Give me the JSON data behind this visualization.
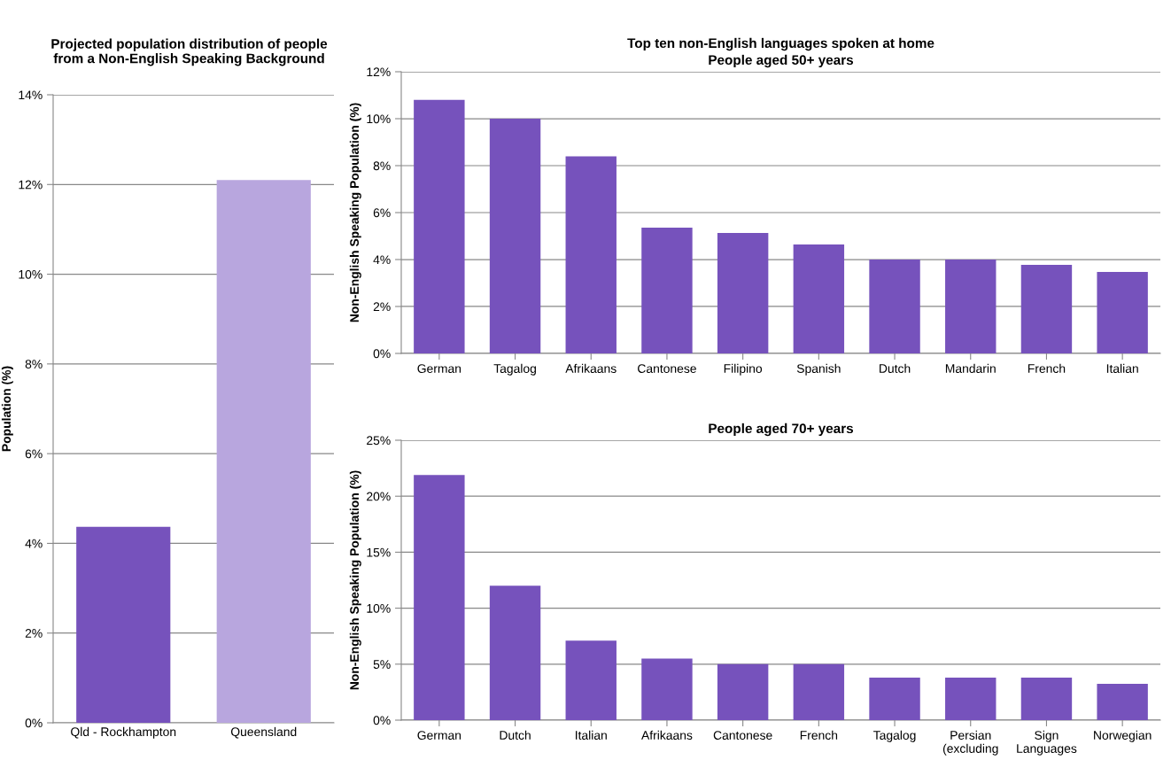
{
  "chart_data": [
    {
      "type": "bar",
      "title": "Projected population distribution of people\nfrom a Non-English Speaking Background",
      "ylabel": "Population (%)",
      "categories": [
        "Qld - Rockhampton",
        "Queensland"
      ],
      "values": [
        4.37,
        12.1
      ],
      "colors": [
        "#7652bc",
        "#b8a6de"
      ],
      "ylim": [
        0,
        14
      ],
      "yticks": [
        {
          "value": 0,
          "label": "0%"
        },
        {
          "value": 2,
          "label": "2%"
        },
        {
          "value": 4,
          "label": "4%"
        },
        {
          "value": 6,
          "label": "6%"
        },
        {
          "value": 8,
          "label": "8%"
        },
        {
          "value": 10,
          "label": "10%"
        },
        {
          "value": 12,
          "label": "12%"
        },
        {
          "value": 14,
          "label": "14%"
        }
      ],
      "grid": "y"
    },
    {
      "type": "bar",
      "title": "Top ten non-English languages spoken at home",
      "subtitle": "People aged 50+ years",
      "ylabel": "Non-English Speaking Population (%)",
      "categories": [
        "German",
        "Tagalog",
        "Afrikaans",
        "Cantonese",
        "Filipino",
        "Spanish",
        "Dutch",
        "Mandarin",
        "French",
        "Italian"
      ],
      "values": [
        10.8,
        10.0,
        8.4,
        5.36,
        5.13,
        4.64,
        4.0,
        4.0,
        3.77,
        3.47
      ],
      "color": "#7652bc",
      "ylim": [
        0,
        12
      ],
      "yticks": [
        {
          "value": 0,
          "label": "0%"
        },
        {
          "value": 2,
          "label": "2%"
        },
        {
          "value": 4,
          "label": "4%"
        },
        {
          "value": 6,
          "label": "6%"
        },
        {
          "value": 8,
          "label": "8%"
        },
        {
          "value": 10,
          "label": "10%"
        },
        {
          "value": 12,
          "label": "12%"
        }
      ],
      "grid": "y"
    },
    {
      "type": "bar",
      "subtitle": "People aged 70+ years",
      "ylabel": "Non-English Speaking Population (%)",
      "categories": [
        "German",
        "Dutch",
        "Italian",
        "Afrikaans",
        "Cantonese",
        "French",
        "Tagalog",
        "Persian\n(excluding",
        "Sign\nLanguages",
        "Norwegian"
      ],
      "values": [
        21.9,
        12.0,
        7.1,
        5.5,
        5.0,
        5.0,
        3.8,
        3.8,
        3.8,
        3.25
      ],
      "color": "#7652bc",
      "ylim": [
        0,
        25
      ],
      "yticks": [
        {
          "value": 0,
          "label": "0%"
        },
        {
          "value": 5,
          "label": "5%"
        },
        {
          "value": 10,
          "label": "10%"
        },
        {
          "value": 15,
          "label": "15%"
        },
        {
          "value": 20,
          "label": "20%"
        },
        {
          "value": 25,
          "label": "25%"
        }
      ],
      "grid": "y"
    }
  ]
}
